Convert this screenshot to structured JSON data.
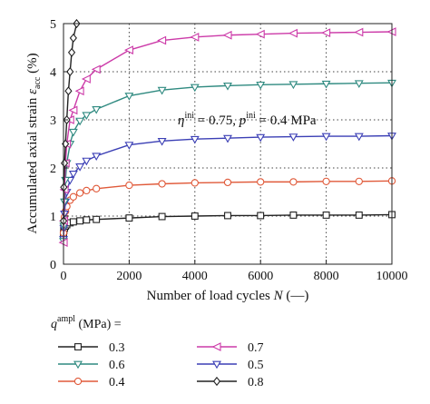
{
  "chart_data": {
    "type": "line",
    "xlabel": "Number of load cycles N (—)",
    "ylabel": "Accumulated axial strain ε_acc (%)",
    "xlim": [
      0,
      10000
    ],
    "ylim": [
      0,
      5
    ],
    "xticks": [
      0,
      2000,
      4000,
      6000,
      8000,
      10000
    ],
    "yticks": [
      0,
      1,
      2,
      3,
      4,
      5
    ],
    "grid": "dotted",
    "annotation": "η^ini = 0.75, p^ini = 0.4 MPa",
    "legend_title": "q^ampl (MPa) =",
    "legend_placement": "below",
    "series": [
      {
        "name": "0.3",
        "marker": "square",
        "color": "#222222",
        "x": [
          1,
          10,
          30,
          60,
          100,
          200,
          300,
          500,
          700,
          1000,
          2000,
          3000,
          4000,
          5000,
          6000,
          7000,
          8000,
          9000,
          10000
        ],
        "y": [
          0.63,
          0.7,
          0.75,
          0.79,
          0.82,
          0.86,
          0.88,
          0.9,
          0.92,
          0.93,
          0.96,
          0.99,
          1.0,
          1.01,
          1.01,
          1.02,
          1.02,
          1.02,
          1.03
        ]
      },
      {
        "name": "0.4",
        "marker": "circle",
        "color": "#e05a3a",
        "x": [
          1,
          10,
          30,
          60,
          100,
          200,
          300,
          500,
          700,
          1000,
          2000,
          3000,
          4000,
          5000,
          6000,
          7000,
          8000,
          9000,
          10000
        ],
        "y": [
          0.65,
          0.82,
          0.98,
          1.1,
          1.2,
          1.33,
          1.4,
          1.48,
          1.53,
          1.57,
          1.64,
          1.67,
          1.69,
          1.7,
          1.71,
          1.71,
          1.72,
          1.72,
          1.73
        ]
      },
      {
        "name": "0.5",
        "marker": "triangle-down",
        "color": "#3b3fb5",
        "x": [
          1,
          10,
          30,
          60,
          100,
          200,
          300,
          500,
          700,
          1000,
          2000,
          3000,
          4000,
          5000,
          6000,
          7000,
          8000,
          9000,
          10000
        ],
        "y": [
          0.52,
          0.75,
          1.05,
          1.3,
          1.5,
          1.75,
          1.88,
          2.03,
          2.15,
          2.25,
          2.48,
          2.56,
          2.6,
          2.62,
          2.64,
          2.65,
          2.66,
          2.66,
          2.67
        ]
      },
      {
        "name": "0.6",
        "marker": "triangle-down",
        "color": "#2f8a80",
        "x": [
          1,
          10,
          30,
          60,
          100,
          200,
          300,
          500,
          700,
          1000,
          2000,
          3000,
          4000,
          5000,
          6000,
          7000,
          8000,
          9000,
          10000
        ],
        "y": [
          0.48,
          0.8,
          1.3,
          1.75,
          2.1,
          2.5,
          2.75,
          2.98,
          3.1,
          3.22,
          3.5,
          3.62,
          3.68,
          3.71,
          3.73,
          3.74,
          3.75,
          3.76,
          3.77
        ]
      },
      {
        "name": "0.7",
        "marker": "triangle-left",
        "color": "#cc3aa8",
        "x": [
          1,
          10,
          30,
          60,
          100,
          200,
          300,
          500,
          700,
          1000,
          2000,
          3000,
          4000,
          5000,
          6000,
          7000,
          8000,
          9000,
          10000
        ],
        "y": [
          0.45,
          0.9,
          1.55,
          2.1,
          2.5,
          3.0,
          3.2,
          3.6,
          3.85,
          4.05,
          4.45,
          4.65,
          4.72,
          4.76,
          4.78,
          4.8,
          4.81,
          4.82,
          4.83
        ]
      },
      {
        "name": "0.8",
        "marker": "diamond",
        "color": "#222222",
        "x": [
          1,
          10,
          30,
          60,
          100,
          150,
          200,
          250,
          300,
          400
        ],
        "y": [
          0.9,
          1.6,
          2.1,
          2.5,
          3.0,
          3.6,
          4.0,
          4.4,
          4.7,
          5.0
        ]
      }
    ]
  }
}
